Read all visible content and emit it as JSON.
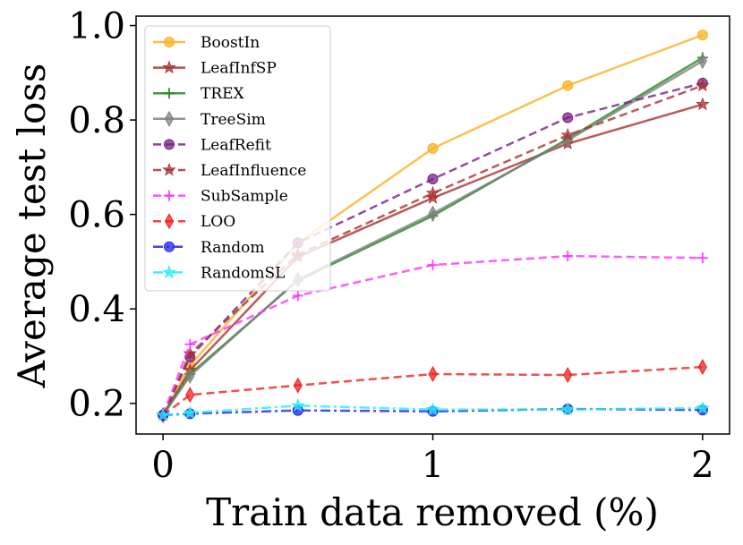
{
  "chart_data": {
    "type": "line",
    "title": "",
    "xlabel": "Train data removed (%)",
    "ylabel": "Average test loss",
    "xlim": [
      -0.1,
      2.1
    ],
    "ylim": [
      0.135,
      1.02
    ],
    "xticks": [
      0,
      1,
      2
    ],
    "xtick_labels": [
      "0",
      "1",
      "2"
    ],
    "yticks": [
      0.2,
      0.4,
      0.6,
      0.8,
      1.0
    ],
    "ytick_labels": [
      "0.2",
      "0.4",
      "0.6",
      "0.8",
      "1.0"
    ],
    "grid": false,
    "legend_position": "top-left",
    "x": [
      0,
      0.1,
      0.5,
      1.0,
      1.5,
      2.0
    ],
    "series": [
      {
        "name": "BoostIn",
        "color": "#fbb125",
        "dash": "solid",
        "marker": "circle",
        "values": [
          0.175,
          0.28,
          0.54,
          0.74,
          0.873,
          0.98
        ]
      },
      {
        "name": "LeafInfSP",
        "color": "#a83232",
        "dash": "solid",
        "marker": "star",
        "values": [
          0.175,
          0.27,
          0.51,
          0.635,
          0.75,
          0.833
        ]
      },
      {
        "name": "TREX",
        "color": "#1f8a1f",
        "dash": "solid",
        "marker": "plus",
        "values": [
          0.175,
          0.262,
          0.46,
          0.597,
          0.76,
          0.932
        ]
      },
      {
        "name": "TreeSim",
        "color": "#808080",
        "dash": "solid",
        "marker": "thin-diamond",
        "values": [
          0.175,
          0.258,
          0.462,
          0.602,
          0.757,
          0.925
        ]
      },
      {
        "name": "LeafRefit",
        "color": "#7b1f8a",
        "dash": "dashed",
        "marker": "circle",
        "values": [
          0.175,
          0.298,
          0.54,
          0.675,
          0.805,
          0.878
        ]
      },
      {
        "name": "LeafInfluence",
        "color": "#a83232",
        "dash": "dashed",
        "marker": "star",
        "values": [
          0.175,
          0.305,
          0.515,
          0.645,
          0.768,
          0.873
        ]
      },
      {
        "name": "SubSample",
        "color": "#ff33ff",
        "dash": "dashed",
        "marker": "plus",
        "values": [
          0.175,
          0.325,
          0.428,
          0.493,
          0.512,
          0.508
        ]
      },
      {
        "name": "LOO",
        "color": "#ee2222",
        "dash": "dashed",
        "marker": "thin-diamond",
        "values": [
          0.175,
          0.218,
          0.238,
          0.262,
          0.26,
          0.277
        ]
      },
      {
        "name": "Random",
        "color": "#2222ee",
        "dash": "dashdot",
        "marker": "circle",
        "values": [
          0.175,
          0.178,
          0.185,
          0.183,
          0.188,
          0.186
        ]
      },
      {
        "name": "RandomSL",
        "color": "#22eeee",
        "dash": "dashdot",
        "marker": "star",
        "values": [
          0.175,
          0.18,
          0.195,
          0.187,
          0.187,
          0.19
        ]
      }
    ]
  }
}
